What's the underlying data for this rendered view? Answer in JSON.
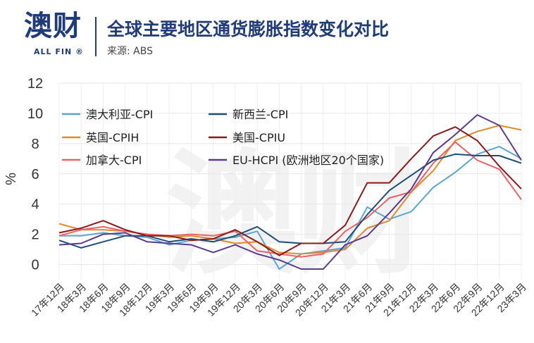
{
  "header": {
    "logo": "澳财",
    "logo_sub": "ALL FIN ®",
    "title": "全球主要地区通货膨胀指数变化对比",
    "source": "来源: ABS"
  },
  "chart_data": {
    "type": "line",
    "ylabel": "%",
    "ylim": [
      -1,
      12
    ],
    "yticks": [
      0,
      2,
      4,
      6,
      8,
      10,
      12
    ],
    "categories": [
      "17年12月",
      "18年3月",
      "18年6月",
      "18年9月",
      "18年12月",
      "19年3月",
      "19年6月",
      "19年9月",
      "19年12月",
      "20年3月",
      "20年6月",
      "20年9月",
      "20年12月",
      "21年3月",
      "21年6月",
      "21年9月",
      "21年12月",
      "22年3月",
      "22年6月",
      "22年9月",
      "22年12月",
      "23年3月"
    ],
    "x_values": [
      0,
      1,
      2,
      3,
      4,
      5,
      6,
      7,
      8,
      9,
      10,
      11,
      12,
      13,
      14,
      15,
      16,
      17,
      18,
      19,
      20,
      21
    ],
    "grid": true,
    "legend": "top-left",
    "series": [
      {
        "name": "澳大利亚-CPI",
        "color": "#5aa5d6",
        "points": [
          [
            0,
            1.9
          ],
          [
            1,
            1.9
          ],
          [
            2,
            2.1
          ],
          [
            3,
            1.9
          ],
          [
            4,
            1.8
          ],
          [
            5,
            1.3
          ],
          [
            6,
            1.6
          ],
          [
            7,
            1.7
          ],
          [
            8,
            1.8
          ],
          [
            9,
            2.2
          ],
          [
            10,
            -0.3
          ],
          [
            11,
            0.7
          ],
          [
            12,
            0.9
          ],
          [
            13,
            1.1
          ],
          [
            14,
            3.8
          ],
          [
            15,
            3.0
          ],
          [
            16,
            3.5
          ],
          [
            17,
            5.1
          ],
          [
            18,
            6.1
          ],
          [
            19,
            7.3
          ],
          [
            20,
            7.8
          ],
          [
            21,
            7.0
          ]
        ]
      },
      {
        "name": "英国-CPIH",
        "color": "#e08a2c",
        "points": [
          [
            0,
            2.7
          ],
          [
            1,
            2.3
          ],
          [
            2,
            2.3
          ],
          [
            3,
            2.2
          ],
          [
            4,
            2.0
          ],
          [
            5,
            1.8
          ],
          [
            6,
            1.9
          ],
          [
            7,
            1.7
          ],
          [
            8,
            1.4
          ],
          [
            9,
            1.5
          ],
          [
            10,
            0.8
          ],
          [
            11,
            0.7
          ],
          [
            12,
            0.8
          ],
          [
            13,
            1.0
          ],
          [
            14,
            2.4
          ],
          [
            15,
            2.9
          ],
          [
            16,
            4.8
          ],
          [
            17,
            6.2
          ],
          [
            18,
            8.2
          ],
          [
            19,
            8.8
          ],
          [
            20,
            9.2
          ],
          [
            21,
            8.9
          ]
        ]
      },
      {
        "name": "加拿大-CPI",
        "color": "#ec6166",
        "points": [
          [
            0,
            1.9
          ],
          [
            1,
            2.3
          ],
          [
            2,
            2.5
          ],
          [
            3,
            2.2
          ],
          [
            4,
            2.0
          ],
          [
            5,
            1.9
          ],
          [
            6,
            2.0
          ],
          [
            7,
            1.9
          ],
          [
            8,
            2.2
          ],
          [
            9,
            0.9
          ],
          [
            10,
            0.7
          ],
          [
            11,
            0.5
          ],
          [
            12,
            0.7
          ],
          [
            13,
            2.2
          ],
          [
            14,
            3.1
          ],
          [
            15,
            4.4
          ],
          [
            16,
            4.8
          ],
          [
            17,
            6.7
          ],
          [
            18,
            8.1
          ],
          [
            19,
            6.9
          ],
          [
            20,
            6.3
          ],
          [
            21,
            4.3
          ]
        ]
      },
      {
        "name": "新西兰-CPI",
        "color": "#1f4e79",
        "points": [
          [
            0,
            1.6
          ],
          [
            1,
            1.1
          ],
          [
            2,
            1.5
          ],
          [
            3,
            1.9
          ],
          [
            4,
            1.9
          ],
          [
            5,
            1.5
          ],
          [
            6,
            1.7
          ],
          [
            7,
            1.5
          ],
          [
            8,
            1.9
          ],
          [
            9,
            2.5
          ],
          [
            10,
            1.5
          ],
          [
            11,
            1.4
          ],
          [
            12,
            1.4
          ],
          [
            13,
            1.5
          ],
          [
            14,
            3.3
          ],
          [
            15,
            4.9
          ],
          [
            16,
            5.9
          ],
          [
            17,
            6.9
          ],
          [
            18,
            7.3
          ],
          [
            19,
            7.2
          ],
          [
            20,
            7.2
          ],
          [
            21,
            6.7
          ]
        ]
      },
      {
        "name": "美国-CPIU",
        "color": "#8b1a1a",
        "points": [
          [
            0,
            2.1
          ],
          [
            1,
            2.4
          ],
          [
            2,
            2.9
          ],
          [
            3,
            2.3
          ],
          [
            4,
            1.9
          ],
          [
            5,
            1.9
          ],
          [
            6,
            1.6
          ],
          [
            7,
            1.7
          ],
          [
            8,
            2.3
          ],
          [
            9,
            1.5
          ],
          [
            10,
            0.6
          ],
          [
            11,
            1.4
          ],
          [
            12,
            1.4
          ],
          [
            13,
            2.6
          ],
          [
            14,
            5.4
          ],
          [
            15,
            5.4
          ],
          [
            16,
            7.0
          ],
          [
            17,
            8.5
          ],
          [
            18,
            9.1
          ],
          [
            19,
            8.2
          ],
          [
            20,
            6.5
          ],
          [
            21,
            5.0
          ]
        ]
      },
      {
        "name": "EU-HCPI (欧洲地区20个国家)",
        "color": "#5b3a8f",
        "points": [
          [
            0,
            1.3
          ],
          [
            1,
            1.4
          ],
          [
            2,
            2.0
          ],
          [
            3,
            2.1
          ],
          [
            4,
            1.5
          ],
          [
            5,
            1.4
          ],
          [
            6,
            1.3
          ],
          [
            7,
            0.8
          ],
          [
            8,
            1.3
          ],
          [
            9,
            0.7
          ],
          [
            10,
            0.3
          ],
          [
            11,
            -0.3
          ],
          [
            12,
            -0.3
          ],
          [
            13,
            1.3
          ],
          [
            14,
            1.9
          ],
          [
            15,
            3.4
          ],
          [
            16,
            5.0
          ],
          [
            17,
            7.4
          ],
          [
            18,
            8.6
          ],
          [
            19,
            9.9
          ],
          [
            20,
            9.2
          ],
          [
            21,
            6.9
          ]
        ]
      }
    ]
  }
}
